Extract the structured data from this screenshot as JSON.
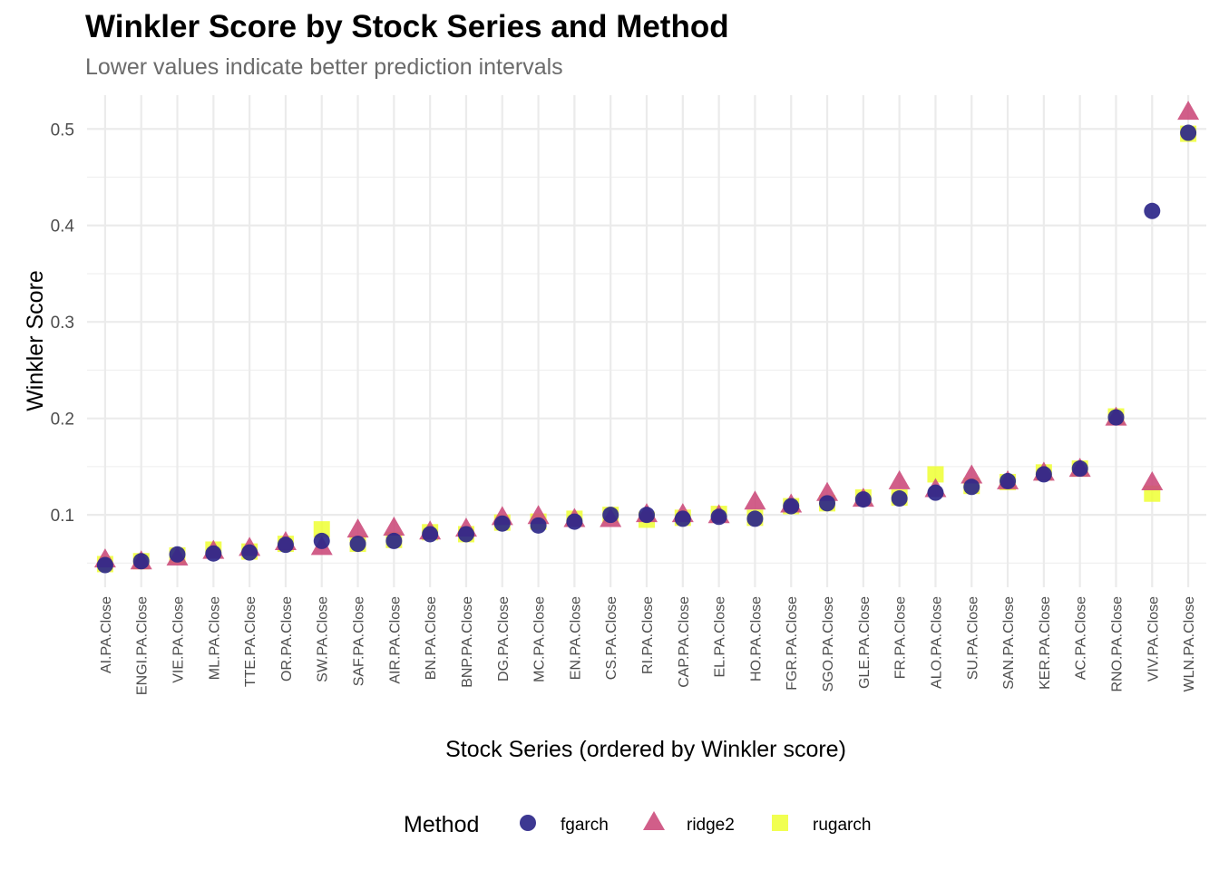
{
  "chart_data": {
    "type": "scatter",
    "title": "Winkler Score by Stock Series and Method",
    "subtitle": "Lower values indicate better prediction intervals",
    "xlabel": "Stock Series (ordered by Winkler score)",
    "ylabel": "Winkler Score",
    "ylim": [
      0.025,
      0.535
    ],
    "yticks": [
      0.1,
      0.2,
      0.3,
      0.4,
      0.5
    ],
    "grid": true,
    "legend_position": "bottom",
    "legend_title": "Method",
    "categories": [
      "AI.PA.Close",
      "ENGI.PA.Close",
      "VIE.PA.Close",
      "ML.PA.Close",
      "TTE.PA.Close",
      "OR.PA.Close",
      "SW.PA.Close",
      "SAF.PA.Close",
      "AIR.PA.Close",
      "BN.PA.Close",
      "BNP.PA.Close",
      "DG.PA.Close",
      "MC.PA.Close",
      "EN.PA.Close",
      "CS.PA.Close",
      "RI.PA.Close",
      "CAP.PA.Close",
      "EL.PA.Close",
      "HO.PA.Close",
      "FGR.PA.Close",
      "SGO.PA.Close",
      "GLE.PA.Close",
      "FR.PA.Close",
      "ALO.PA.Close",
      "SU.PA.Close",
      "SAN.PA.Close",
      "KER.PA.Close",
      "AC.PA.Close",
      "RNO.PA.Close",
      "VIV.PA.Close",
      "WLN.PA.Close"
    ],
    "series": [
      {
        "name": "rugarch",
        "shape": "square",
        "color": "#eeff33",
        "values": [
          0.049,
          0.052,
          0.058,
          0.064,
          0.062,
          0.07,
          0.085,
          0.07,
          0.074,
          0.082,
          0.08,
          0.092,
          0.093,
          0.096,
          0.1,
          0.095,
          0.097,
          0.101,
          0.097,
          0.109,
          0.112,
          0.118,
          0.118,
          0.142,
          0.13,
          0.134,
          0.144,
          0.148,
          0.202,
          0.122,
          0.495
        ]
      },
      {
        "name": "ridge2",
        "shape": "triangle",
        "color": "#cc4c7c",
        "values": [
          0.053,
          0.051,
          0.055,
          0.062,
          0.065,
          0.071,
          0.066,
          0.084,
          0.086,
          0.082,
          0.085,
          0.097,
          0.098,
          0.095,
          0.095,
          0.1,
          0.1,
          0.099,
          0.113,
          0.11,
          0.122,
          0.116,
          0.134,
          0.126,
          0.14,
          0.134,
          0.143,
          0.147,
          0.2,
          0.133,
          0.517
        ]
      },
      {
        "name": "fgarch",
        "shape": "circle",
        "color": "#2c2789",
        "values": [
          0.048,
          0.052,
          0.059,
          0.06,
          0.061,
          0.069,
          0.073,
          0.07,
          0.073,
          0.08,
          0.08,
          0.091,
          0.089,
          0.093,
          0.1,
          0.1,
          0.096,
          0.098,
          0.096,
          0.109,
          0.112,
          0.116,
          0.117,
          0.123,
          0.129,
          0.135,
          0.142,
          0.148,
          0.201,
          0.415,
          0.496
        ]
      }
    ]
  }
}
